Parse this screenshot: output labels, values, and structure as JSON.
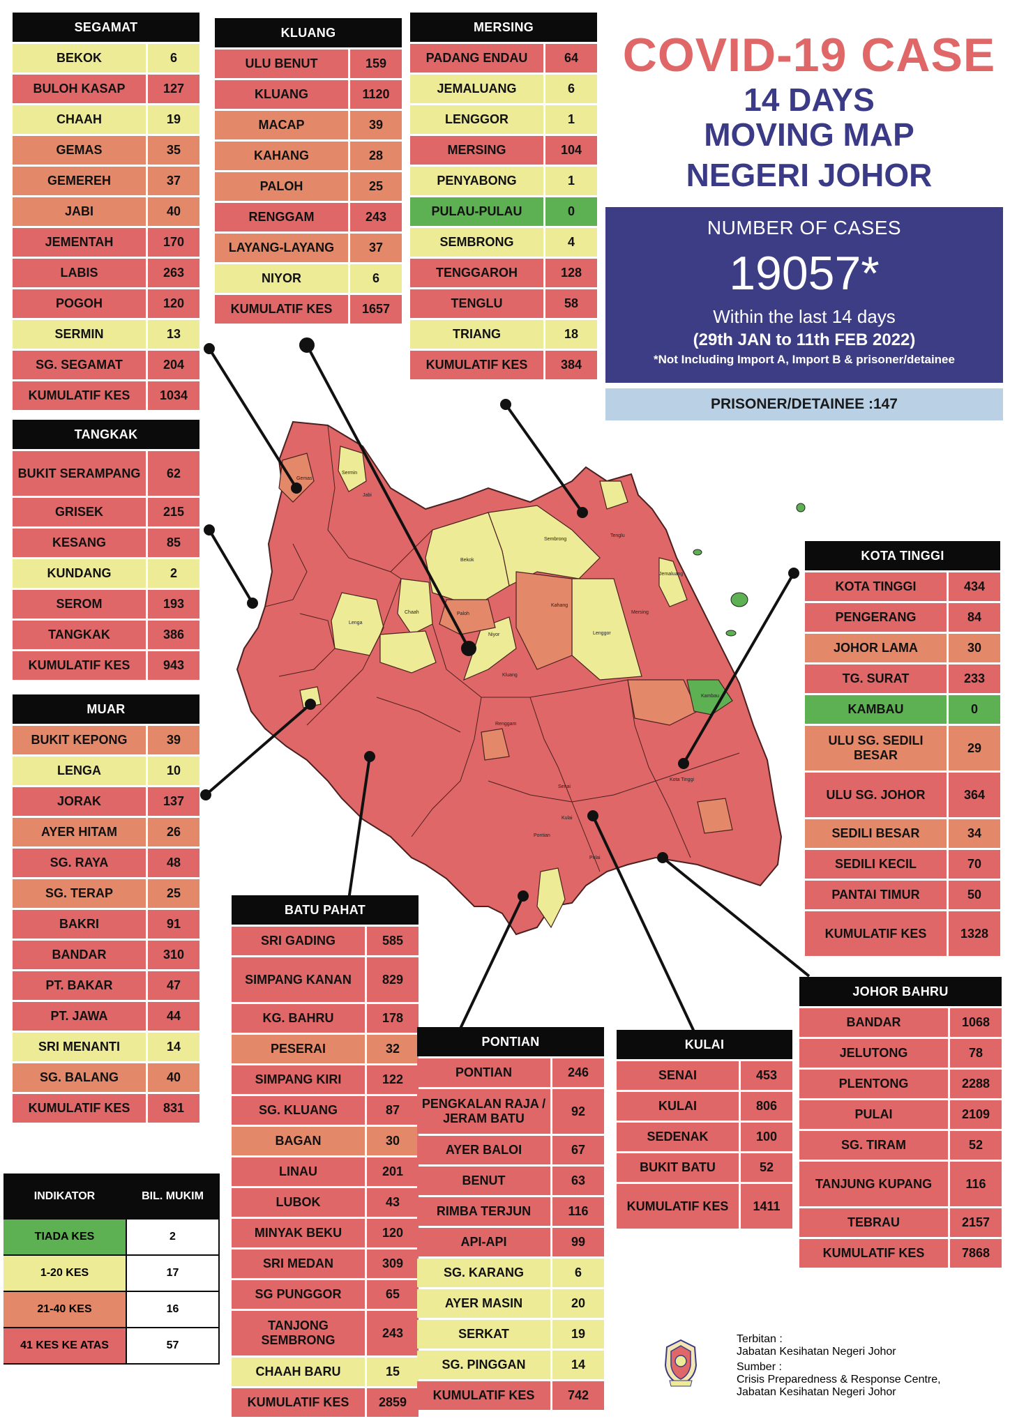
{
  "title": {
    "line1": "COVID-19 CASE",
    "line2": "14 DAYS",
    "line3": "MOVING MAP",
    "line4": "NEGERI JOHOR"
  },
  "cases_box": {
    "label": "NUMBER OF CASES",
    "number": "19057*",
    "within": "Within the last 14 days",
    "dates": "(29th JAN to 11th FEB 2022)",
    "note": "*Not Including Import A, Import B & prisoner/detainee"
  },
  "prisoner": "PRISONER/DETAINEE :147",
  "colors": {
    "red": "#df6767",
    "salmon": "#e4886a",
    "yellow": "#eeeb96",
    "green": "#5db152",
    "navy": "#3d3d86"
  },
  "districts": {
    "segamat": {
      "name": "SEGAMAT",
      "rows": [
        {
          "name": "BEKOK",
          "value": "6",
          "level": "yel"
        },
        {
          "name": "BULOH KASAP",
          "value": "127",
          "level": "red"
        },
        {
          "name": "CHAAH",
          "value": "19",
          "level": "yel"
        },
        {
          "name": "GEMAS",
          "value": "35",
          "level": "sal"
        },
        {
          "name": "GEMEREH",
          "value": "37",
          "level": "sal"
        },
        {
          "name": "JABI",
          "value": "40",
          "level": "sal"
        },
        {
          "name": "JEMENTAH",
          "value": "170",
          "level": "red"
        },
        {
          "name": "LABIS",
          "value": "263",
          "level": "red"
        },
        {
          "name": "POGOH",
          "value": "120",
          "level": "red"
        },
        {
          "name": "SERMIN",
          "value": "13",
          "level": "yel"
        },
        {
          "name": "SG. SEGAMAT",
          "value": "204",
          "level": "red"
        },
        {
          "name": "KUMULATIF KES",
          "value": "1034",
          "level": "red",
          "total": true
        }
      ]
    },
    "kluang": {
      "name": "KLUANG",
      "rows": [
        {
          "name": "ULU BENUT",
          "value": "159",
          "level": "red"
        },
        {
          "name": "KLUANG",
          "value": "1120",
          "level": "red"
        },
        {
          "name": "MACAP",
          "value": "39",
          "level": "sal"
        },
        {
          "name": "KAHANG",
          "value": "28",
          "level": "sal"
        },
        {
          "name": "PALOH",
          "value": "25",
          "level": "sal"
        },
        {
          "name": "RENGGAM",
          "value": "243",
          "level": "red"
        },
        {
          "name": "LAYANG-LAYANG",
          "value": "37",
          "level": "sal"
        },
        {
          "name": "NIYOR",
          "value": "6",
          "level": "yel"
        },
        {
          "name": "KUMULATIF KES",
          "value": "1657",
          "level": "red",
          "total": true
        }
      ]
    },
    "mersing": {
      "name": "MERSING",
      "rows": [
        {
          "name": "PADANG ENDAU",
          "value": "64",
          "level": "red"
        },
        {
          "name": "JEMALUANG",
          "value": "6",
          "level": "yel"
        },
        {
          "name": "LENGGOR",
          "value": "1",
          "level": "yel"
        },
        {
          "name": "MERSING",
          "value": "104",
          "level": "red"
        },
        {
          "name": "PENYABONG",
          "value": "1",
          "level": "yel"
        },
        {
          "name": "PULAU-PULAU",
          "value": "0",
          "level": "grn"
        },
        {
          "name": "SEMBRONG",
          "value": "4",
          "level": "yel"
        },
        {
          "name": "TENGGAROH",
          "value": "128",
          "level": "red"
        },
        {
          "name": "TENGLU",
          "value": "58",
          "level": "red"
        },
        {
          "name": "TRIANG",
          "value": "18",
          "level": "yel"
        },
        {
          "name": "KUMULATIF KES",
          "value": "384",
          "level": "red",
          "total": true
        }
      ]
    },
    "tangkak": {
      "name": "TANGKAK",
      "rows": [
        {
          "name": "BUKIT SERAMPANG",
          "value": "62",
          "level": "red",
          "tall": true
        },
        {
          "name": "GRISEK",
          "value": "215",
          "level": "red"
        },
        {
          "name": "KESANG",
          "value": "85",
          "level": "red"
        },
        {
          "name": "KUNDANG",
          "value": "2",
          "level": "yel"
        },
        {
          "name": "SEROM",
          "value": "193",
          "level": "red"
        },
        {
          "name": "TANGKAK",
          "value": "386",
          "level": "red"
        },
        {
          "name": "KUMULATIF KES",
          "value": "943",
          "level": "red",
          "total": true
        }
      ]
    },
    "muar": {
      "name": "MUAR",
      "rows": [
        {
          "name": "BUKIT KEPONG",
          "value": "39",
          "level": "sal"
        },
        {
          "name": "LENGA",
          "value": "10",
          "level": "yel"
        },
        {
          "name": "JORAK",
          "value": "137",
          "level": "red"
        },
        {
          "name": "AYER HITAM",
          "value": "26",
          "level": "sal"
        },
        {
          "name": "SG. RAYA",
          "value": "48",
          "level": "red"
        },
        {
          "name": "SG. TERAP",
          "value": "25",
          "level": "sal"
        },
        {
          "name": "BAKRI",
          "value": "91",
          "level": "red"
        },
        {
          "name": "BANDAR",
          "value": "310",
          "level": "red"
        },
        {
          "name": "PT. BAKAR",
          "value": "47",
          "level": "red"
        },
        {
          "name": "PT. JAWA",
          "value": "44",
          "level": "red"
        },
        {
          "name": "SRI MENANTI",
          "value": "14",
          "level": "yel"
        },
        {
          "name": "SG. BALANG",
          "value": "40",
          "level": "sal"
        },
        {
          "name": "KUMULATIF KES",
          "value": "831",
          "level": "red",
          "total": true
        }
      ]
    },
    "batu_pahat": {
      "name": "BATU PAHAT",
      "rows": [
        {
          "name": "SRI GADING",
          "value": "585",
          "level": "red"
        },
        {
          "name": "SIMPANG KANAN",
          "value": "829",
          "level": "red",
          "tall": true
        },
        {
          "name": "KG. BAHRU",
          "value": "178",
          "level": "red"
        },
        {
          "name": "PESERAI",
          "value": "32",
          "level": "sal"
        },
        {
          "name": "SIMPANG KIRI",
          "value": "122",
          "level": "red"
        },
        {
          "name": "SG. KLUANG",
          "value": "87",
          "level": "red"
        },
        {
          "name": "BAGAN",
          "value": "30",
          "level": "sal"
        },
        {
          "name": "LINAU",
          "value": "201",
          "level": "red"
        },
        {
          "name": "LUBOK",
          "value": "43",
          "level": "red"
        },
        {
          "name": "MINYAK BEKU",
          "value": "120",
          "level": "red"
        },
        {
          "name": "SRI MEDAN",
          "value": "309",
          "level": "red"
        },
        {
          "name": "SG PUNGGOR",
          "value": "65",
          "level": "red"
        },
        {
          "name": "TANJONG SEMBRONG",
          "value": "243",
          "level": "red",
          "tall": true
        },
        {
          "name": "CHAAH BARU",
          "value": "15",
          "level": "yel"
        },
        {
          "name": "KUMULATIF KES",
          "value": "2859",
          "level": "red",
          "total": true
        }
      ]
    },
    "pontian": {
      "name": "PONTIAN",
      "rows": [
        {
          "name": "PONTIAN",
          "value": "246",
          "level": "red"
        },
        {
          "name": "PENGKALAN RAJA / JERAM BATU",
          "value": "92",
          "level": "red",
          "tall": true
        },
        {
          "name": "AYER BALOI",
          "value": "67",
          "level": "red"
        },
        {
          "name": "BENUT",
          "value": "63",
          "level": "red"
        },
        {
          "name": "RIMBA TERJUN",
          "value": "116",
          "level": "red"
        },
        {
          "name": "API-API",
          "value": "99",
          "level": "red"
        },
        {
          "name": "SG. KARANG",
          "value": "6",
          "level": "yel"
        },
        {
          "name": "AYER MASIN",
          "value": "20",
          "level": "yel"
        },
        {
          "name": "SERKAT",
          "value": "19",
          "level": "yel"
        },
        {
          "name": "SG. PINGGAN",
          "value": "14",
          "level": "yel"
        },
        {
          "name": "KUMULATIF KES",
          "value": "742",
          "level": "red",
          "total": true
        }
      ]
    },
    "kulai": {
      "name": "KULAI",
      "rows": [
        {
          "name": "SENAI",
          "value": "453",
          "level": "red"
        },
        {
          "name": "KULAI",
          "value": "806",
          "level": "red"
        },
        {
          "name": "SEDENAK",
          "value": "100",
          "level": "red"
        },
        {
          "name": "BUKIT BATU",
          "value": "52",
          "level": "red"
        },
        {
          "name": "KUMULATIF KES",
          "value": "1411",
          "level": "red",
          "total": true,
          "tall": true
        }
      ]
    },
    "kota_tinggi": {
      "name": "KOTA TINGGI",
      "rows": [
        {
          "name": "KOTA TINGGI",
          "value": "434",
          "level": "red"
        },
        {
          "name": "PENGERANG",
          "value": "84",
          "level": "red"
        },
        {
          "name": "JOHOR LAMA",
          "value": "30",
          "level": "sal"
        },
        {
          "name": "TG. SURAT",
          "value": "233",
          "level": "red"
        },
        {
          "name": "KAMBAU",
          "value": "0",
          "level": "grn"
        },
        {
          "name": "ULU SG. SEDILI BESAR",
          "value": "29",
          "level": "sal",
          "tall": true
        },
        {
          "name": "ULU SG. JOHOR",
          "value": "364",
          "level": "red",
          "tall": true
        },
        {
          "name": "SEDILI BESAR",
          "value": "34",
          "level": "sal"
        },
        {
          "name": "SEDILI KECIL",
          "value": "70",
          "level": "red"
        },
        {
          "name": "PANTAI TIMUR",
          "value": "50",
          "level": "red"
        },
        {
          "name": "KUMULATIF KES",
          "value": "1328",
          "level": "red",
          "total": true,
          "tall": true
        }
      ]
    },
    "johor_bahru": {
      "name": "JOHOR BAHRU",
      "rows": [
        {
          "name": "BANDAR",
          "value": "1068",
          "level": "red"
        },
        {
          "name": "JELUTONG",
          "value": "78",
          "level": "red"
        },
        {
          "name": "PLENTONG",
          "value": "2288",
          "level": "red"
        },
        {
          "name": "PULAI",
          "value": "2109",
          "level": "red"
        },
        {
          "name": "SG. TIRAM",
          "value": "52",
          "level": "red"
        },
        {
          "name": "TANJUNG KUPANG",
          "value": "116",
          "level": "red",
          "tall": true
        },
        {
          "name": "TEBRAU",
          "value": "2157",
          "level": "red"
        },
        {
          "name": "KUMULATIF KES",
          "value": "7868",
          "level": "red",
          "total": true
        }
      ]
    }
  },
  "legend": {
    "header_left": "INDIKATOR",
    "header_right": "BIL. MUKIM",
    "rows": [
      {
        "label": "TIADA KES",
        "value": "2",
        "level": "grn"
      },
      {
        "label": "1-20 KES",
        "value": "17",
        "level": "yel"
      },
      {
        "label": "21-40 KES",
        "value": "16",
        "level": "sal"
      },
      {
        "label": "41 KES KE ATAS",
        "value": "57",
        "level": "red"
      }
    ]
  },
  "map_labels": [
    "Gemas",
    "Sermin",
    "Jabi",
    "Bekok",
    "Chaah",
    "Lenga",
    "Paloh",
    "Niyor",
    "Kahang",
    "Lenggor",
    "Mersing",
    "Kluang",
    "Renggam",
    "Tenglu",
    "Jemaluang",
    "Sembrong",
    "Kambau",
    "Kota Tinggi",
    "Pontian",
    "Senai",
    "Kulai",
    "Pulai"
  ],
  "footer": {
    "terbitan_label": "Terbitan :",
    "terbitan": "Jabatan Kesihatan Negeri Johor",
    "sumber_label": "Sumber :",
    "sumber_line1": "Crisis Preparedness & Response Centre,",
    "sumber_line2": "Jabatan Kesihatan Negeri Johor"
  }
}
